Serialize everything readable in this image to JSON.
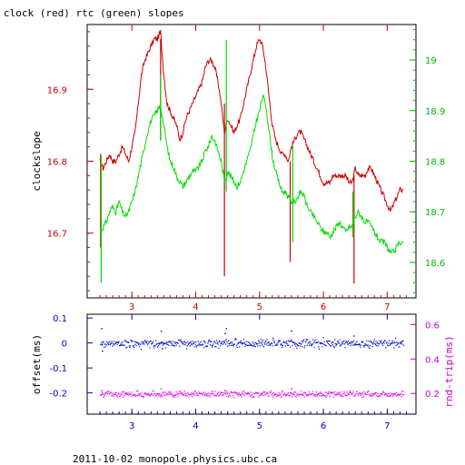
{
  "page": {
    "title": "clock (red) rtc (green) slopes",
    "footer": "2011-10-02  monopole.physics.ubc.ca"
  },
  "chart_data": [
    {
      "type": "line",
      "title": "clock (red) rtc (green) slopes",
      "xlabel": "",
      "ylabel": "clockslope",
      "y2label": "",
      "xlim": [
        2.3,
        7.45
      ],
      "ylim": [
        16.61,
        16.99
      ],
      "y2lim": [
        18.53,
        19.07
      ],
      "xticks": [
        "3",
        "4",
        "5",
        "6",
        "7"
      ],
      "yticks": [
        "16.7",
        "16.8",
        "16.9"
      ],
      "y2ticks": [
        "18.6",
        "18.7",
        "18.8",
        "18.9",
        "19"
      ],
      "colors": {
        "clock": "#cc0000",
        "rtc": "#00dd00",
        "left_axis": "#cc0000",
        "right_axis": "#00bb00"
      },
      "series": [
        {
          "name": "clock",
          "axis": "left",
          "x": [
            2.5,
            2.55,
            2.6,
            2.65,
            2.7,
            2.75,
            2.8,
            2.85,
            2.9,
            2.95,
            3.0,
            3.05,
            3.1,
            3.15,
            3.2,
            3.25,
            3.3,
            3.35,
            3.4,
            3.45,
            3.5,
            3.55,
            3.6,
            3.65,
            3.7,
            3.75,
            3.8,
            3.85,
            3.9,
            3.95,
            4.0,
            4.05,
            4.1,
            4.15,
            4.2,
            4.25,
            4.3,
            4.35,
            4.4,
            4.45,
            4.5,
            4.55,
            4.6,
            4.65,
            4.7,
            4.75,
            4.8,
            4.85,
            4.9,
            4.95,
            5.0,
            5.05,
            5.1,
            5.15,
            5.2,
            5.25,
            5.3,
            5.35,
            5.4,
            5.45,
            5.5,
            5.55,
            5.6,
            5.65,
            5.7,
            5.75,
            5.8,
            5.85,
            5.9,
            5.95,
            6.0,
            6.05,
            6.1,
            6.15,
            6.2,
            6.25,
            6.3,
            6.35,
            6.4,
            6.45,
            6.5,
            6.55,
            6.6,
            6.65,
            6.7,
            6.75,
            6.8,
            6.85,
            6.9,
            6.95,
            7.0,
            7.05,
            7.1,
            7.15,
            7.2,
            7.25
          ],
          "y": [
            16.8,
            16.79,
            16.8,
            16.81,
            16.8,
            16.8,
            16.81,
            16.82,
            16.81,
            16.8,
            16.82,
            16.84,
            16.88,
            16.92,
            16.94,
            16.95,
            16.96,
            16.97,
            16.97,
            16.98,
            16.92,
            16.88,
            16.87,
            16.86,
            16.85,
            16.83,
            16.84,
            16.86,
            16.87,
            16.88,
            16.89,
            16.9,
            16.91,
            16.93,
            16.94,
            16.94,
            16.93,
            16.91,
            16.88,
            16.84,
            16.86,
            16.85,
            16.84,
            16.85,
            16.86,
            16.88,
            16.9,
            16.92,
            16.94,
            16.96,
            16.97,
            16.96,
            16.93,
            16.89,
            16.85,
            16.83,
            16.82,
            16.81,
            16.81,
            16.8,
            16.82,
            16.83,
            16.84,
            16.84,
            16.83,
            16.82,
            16.81,
            16.8,
            16.79,
            16.78,
            16.77,
            16.77,
            16.77,
            16.78,
            16.78,
            16.78,
            16.78,
            16.78,
            16.77,
            16.77,
            16.79,
            16.78,
            16.78,
            16.78,
            16.79,
            16.79,
            16.78,
            16.77,
            16.76,
            16.75,
            16.74,
            16.73,
            16.74,
            16.75,
            16.76,
            16.76
          ],
          "spikes": [
            {
              "x": 2.51,
              "low": 16.68,
              "high": 16.81
            },
            {
              "x": 3.45,
              "low": 16.83,
              "high": 16.97
            },
            {
              "x": 4.45,
              "low": 16.64,
              "high": 16.88
            },
            {
              "x": 5.48,
              "low": 16.66,
              "high": 16.8
            },
            {
              "x": 6.48,
              "low": 16.63,
              "high": 16.78
            }
          ]
        },
        {
          "name": "rtc",
          "axis": "right",
          "x": [
            2.5,
            2.55,
            2.6,
            2.65,
            2.7,
            2.75,
            2.8,
            2.85,
            2.9,
            2.95,
            3.0,
            3.05,
            3.1,
            3.15,
            3.2,
            3.25,
            3.3,
            3.35,
            3.4,
            3.45,
            3.5,
            3.55,
            3.6,
            3.65,
            3.7,
            3.75,
            3.8,
            3.85,
            3.9,
            3.95,
            4.0,
            4.05,
            4.1,
            4.15,
            4.2,
            4.25,
            4.3,
            4.35,
            4.4,
            4.45,
            4.5,
            4.55,
            4.6,
            4.65,
            4.7,
            4.75,
            4.8,
            4.85,
            4.9,
            4.95,
            5.0,
            5.05,
            5.1,
            5.15,
            5.2,
            5.25,
            5.3,
            5.35,
            5.4,
            5.45,
            5.5,
            5.55,
            5.6,
            5.65,
            5.7,
            5.75,
            5.8,
            5.85,
            5.9,
            5.95,
            6.0,
            6.05,
            6.1,
            6.15,
            6.2,
            6.25,
            6.3,
            6.35,
            6.4,
            6.45,
            6.5,
            6.55,
            6.6,
            6.65,
            6.7,
            6.75,
            6.8,
            6.85,
            6.9,
            6.95,
            7.0,
            7.05,
            7.1,
            7.15,
            7.2,
            7.25
          ],
          "y": [
            18.66,
            18.67,
            18.68,
            18.7,
            18.71,
            18.7,
            18.72,
            18.7,
            18.69,
            18.7,
            18.72,
            18.74,
            18.77,
            18.8,
            18.83,
            18.86,
            18.88,
            18.89,
            18.9,
            18.91,
            18.87,
            18.83,
            18.8,
            18.79,
            18.77,
            18.76,
            18.75,
            18.76,
            18.77,
            18.78,
            18.78,
            18.79,
            18.8,
            18.82,
            18.83,
            18.85,
            18.84,
            18.82,
            18.8,
            18.76,
            18.78,
            18.77,
            18.76,
            18.75,
            18.76,
            18.78,
            18.8,
            18.82,
            18.85,
            18.88,
            18.9,
            18.93,
            18.91,
            18.86,
            18.81,
            18.78,
            18.76,
            18.74,
            18.74,
            18.73,
            18.72,
            18.72,
            18.73,
            18.74,
            18.73,
            18.71,
            18.7,
            18.69,
            18.68,
            18.67,
            18.66,
            18.66,
            18.65,
            18.66,
            18.67,
            18.68,
            18.67,
            18.66,
            18.67,
            18.67,
            18.69,
            18.7,
            18.69,
            18.68,
            18.68,
            18.67,
            18.66,
            18.65,
            18.64,
            18.64,
            18.63,
            18.62,
            18.62,
            18.63,
            18.64,
            18.64
          ],
          "spikes": [
            {
              "x": 2.52,
              "low": 18.56,
              "high": 18.81
            },
            {
              "x": 3.45,
              "low": 18.84,
              "high": 18.97
            },
            {
              "x": 4.48,
              "low": 18.74,
              "high": 19.04
            },
            {
              "x": 5.52,
              "low": 18.64,
              "high": 18.83
            },
            {
              "x": 6.46,
              "low": 18.65,
              "high": 18.74
            }
          ]
        }
      ]
    },
    {
      "type": "scatter",
      "xlabel": "",
      "ylabel": "offset(ms)",
      "y2label": "rnd-trip(ms)",
      "xlim": [
        2.3,
        7.45
      ],
      "ylim": [
        -0.285,
        0.115
      ],
      "y2lim": [
        0.08,
        0.66
      ],
      "xticks": [
        "3",
        "4",
        "5",
        "6",
        "7"
      ],
      "yticks": [
        "-0.2",
        "-0.1",
        "0",
        "0.1"
      ],
      "y2ticks": [
        "0.2",
        "0.4",
        "0.6"
      ],
      "colors": {
        "offset": "#0000cc",
        "rndtrip": "#ee00ee",
        "left_axis": "#0000cc",
        "right_axis": "#cc00cc"
      },
      "series": [
        {
          "name": "offset",
          "axis": "left",
          "x_range": [
            2.5,
            7.25
          ],
          "center": 0.0,
          "spread": 0.012,
          "outliers": [
            {
              "x": 2.52,
              "y": 0.06
            },
            {
              "x": 2.53,
              "y": -0.03
            },
            {
              "x": 3.45,
              "y": 0.05
            },
            {
              "x": 3.47,
              "y": -0.02
            },
            {
              "x": 4.45,
              "y": 0.04
            },
            {
              "x": 4.47,
              "y": 0.06
            },
            {
              "x": 5.49,
              "y": 0.05
            },
            {
              "x": 6.47,
              "y": 0.03
            }
          ]
        },
        {
          "name": "rnd-trip",
          "axis": "right",
          "x_range": [
            2.5,
            7.25
          ],
          "center": 0.2,
          "spread": 0.012,
          "outliers": [
            {
              "x": 2.52,
              "y": 0.22
            },
            {
              "x": 3.45,
              "y": 0.23
            },
            {
              "x": 4.46,
              "y": 0.22
            },
            {
              "x": 5.49,
              "y": 0.23
            }
          ]
        }
      ]
    }
  ]
}
